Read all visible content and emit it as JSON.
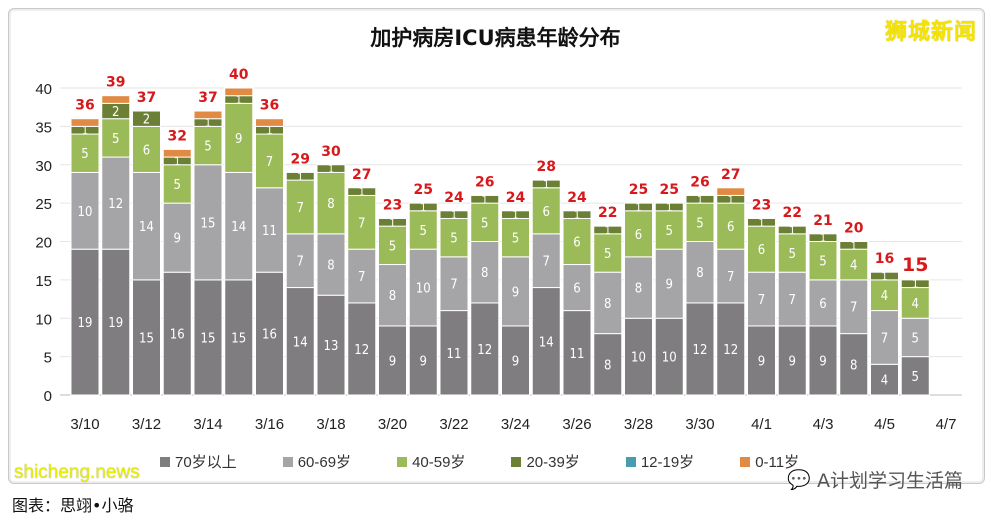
{
  "logo_text": "狮城新闻",
  "caption": "图表：思翊•小骆",
  "watermark": "shicheng.news",
  "wechat_label": "A计划学习生活篇",
  "chart_data": {
    "type": "stacked-bar",
    "title": "加护病房ICU病患年龄分布",
    "xlabel": "",
    "ylabel": "",
    "ylim": [
      0,
      40
    ],
    "yticks": [
      0,
      5,
      10,
      15,
      20,
      25,
      30,
      35,
      40
    ],
    "grid": true,
    "legend_position": "bottom",
    "categories": [
      "3/10",
      "3/11",
      "3/12",
      "3/13",
      "3/14",
      "3/15",
      "3/16",
      "3/17",
      "3/18",
      "3/19",
      "3/20",
      "3/21",
      "3/22",
      "3/23",
      "3/24",
      "3/25",
      "3/26",
      "3/27",
      "3/28",
      "3/29",
      "3/30",
      "3/31",
      "4/1",
      "4/2",
      "4/3",
      "4/4",
      "4/5",
      "4/6",
      "4/7"
    ],
    "xtick_labels": [
      "3/10",
      "3/12",
      "3/14",
      "3/16",
      "3/18",
      "3/20",
      "3/22",
      "3/24",
      "3/26",
      "3/28",
      "3/30",
      "4/1",
      "4/3",
      "4/5",
      "4/7"
    ],
    "series": [
      {
        "name": "70岁以上",
        "color": "#7f7d7f",
        "values": [
          19,
          19,
          15,
          16,
          15,
          15,
          16,
          14,
          13,
          12,
          9,
          9,
          11,
          12,
          9,
          14,
          11,
          8,
          10,
          10,
          12,
          12,
          9,
          9,
          9,
          8,
          4,
          5,
          0
        ]
      },
      {
        "name": "60-69岁",
        "color": "#a5a5a7",
        "values": [
          10,
          12,
          14,
          9,
          15,
          14,
          11,
          7,
          8,
          7,
          8,
          10,
          7,
          8,
          9,
          7,
          6,
          8,
          8,
          9,
          8,
          7,
          7,
          7,
          6,
          7,
          7,
          5,
          0
        ]
      },
      {
        "name": "40-59岁",
        "color": "#9bbb59",
        "values": [
          5,
          5,
          6,
          5,
          5,
          9,
          7,
          7,
          8,
          7,
          5,
          5,
          5,
          5,
          5,
          6,
          6,
          5,
          6,
          5,
          5,
          6,
          6,
          5,
          5,
          4,
          4,
          4,
          0
        ]
      },
      {
        "name": "20-39岁",
        "color": "#6b7f35",
        "values": [
          1,
          2,
          2,
          1,
          1,
          1,
          1,
          1,
          1,
          1,
          1,
          1,
          1,
          1,
          1,
          1,
          1,
          1,
          1,
          1,
          1,
          1,
          1,
          1,
          1,
          1,
          1,
          1,
          0
        ]
      },
      {
        "name": "12-19岁",
        "color": "#4a9bab",
        "values": [
          0,
          0,
          0,
          0,
          0,
          0,
          0,
          0,
          0,
          0,
          0,
          0,
          0,
          0,
          0,
          0,
          0,
          0,
          0,
          0,
          0,
          0,
          0,
          0,
          0,
          0,
          0,
          0,
          0
        ]
      },
      {
        "name": "0-11岁",
        "color": "#e08a43",
        "values": [
          1,
          1,
          0,
          1,
          1,
          1,
          1,
          0,
          0,
          0,
          0,
          0,
          0,
          0,
          0,
          0,
          0,
          0,
          0,
          0,
          0,
          1,
          0,
          0,
          0,
          0,
          0,
          0,
          0
        ]
      }
    ],
    "totals": [
      36,
      39,
      37,
      32,
      37,
      40,
      36,
      29,
      30,
      27,
      23,
      25,
      24,
      26,
      24,
      28,
      24,
      22,
      25,
      25,
      26,
      27,
      23,
      22,
      21,
      20,
      16,
      15,
      null
    ],
    "total_label_color": "#d7191c"
  }
}
